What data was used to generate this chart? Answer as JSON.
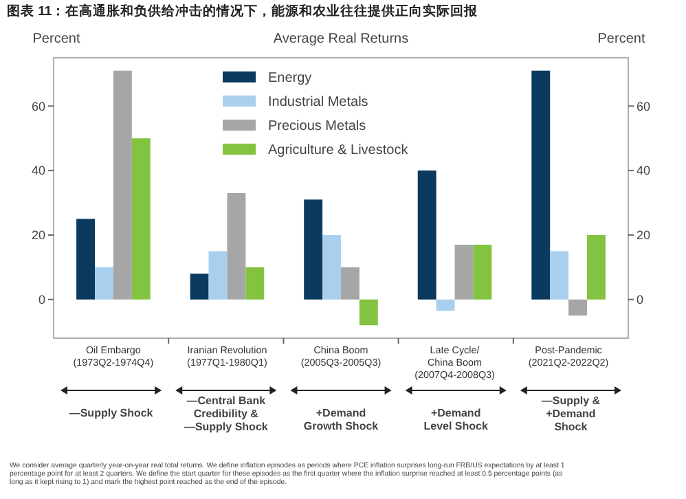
{
  "chart_data": {
    "type": "bar",
    "title": "图表 11：在高通胀和负供给冲击的情况下，能源和农业往往提供正向实际回报",
    "subtitle": "Average Real Returns",
    "ylabel": "Percent",
    "y2label": "Percent",
    "categories": [
      "Oil Embargo\n(1973Q2-1974Q4)",
      "Iranian Revolution\n(1977Q1-1980Q1)",
      "China Boom\n(2005Q3-2005Q3)",
      "Late Cycle/\nChina Boom\n(2007Q4-2008Q3)",
      "Post-Pandemic\n(2021Q2-2022Q2)"
    ],
    "series": [
      {
        "name": "Energy",
        "color": "#0b3a5e",
        "values": [
          25,
          8,
          31,
          40,
          71
        ]
      },
      {
        "name": "Industrial Metals",
        "color": "#a9cfee",
        "values": [
          10,
          15,
          20,
          -3.5,
          15
        ]
      },
      {
        "name": "Precious Metals",
        "color": "#a6a6a6",
        "values": [
          71,
          33,
          10,
          17,
          -5
        ]
      },
      {
        "name": "Agriculture & Livestock",
        "color": "#84c341",
        "values": [
          50,
          10,
          -8,
          17,
          20
        ]
      }
    ],
    "ylim": [
      -12,
      75
    ],
    "yticks": [
      0,
      20,
      40,
      60
    ],
    "y2lim": [
      -12,
      75
    ],
    "y2ticks": [
      0,
      20,
      40,
      60
    ],
    "legend": "top",
    "annotations": [
      "—Supply Shock",
      "—Central Bank\nCredibility &\n—Supply Shock",
      "+Demand\nGrowth Shock",
      "+Demand\nLevel Shock",
      "—Supply &\n+Demand\nShock",
      "We consider average quarterly year-on-year real total returns. We define inflation episodes as periods where PCE inflation surprises long-run FRB/US expectations by at least 1 percentage point for at least 2 quarters. We define the start quarter for these episodes as the first quarter where the inflation surprise reached at least 0.5 percentage points (as long as it kept rising to 1) and mark the highest point reached as the end of the episode."
    ]
  }
}
